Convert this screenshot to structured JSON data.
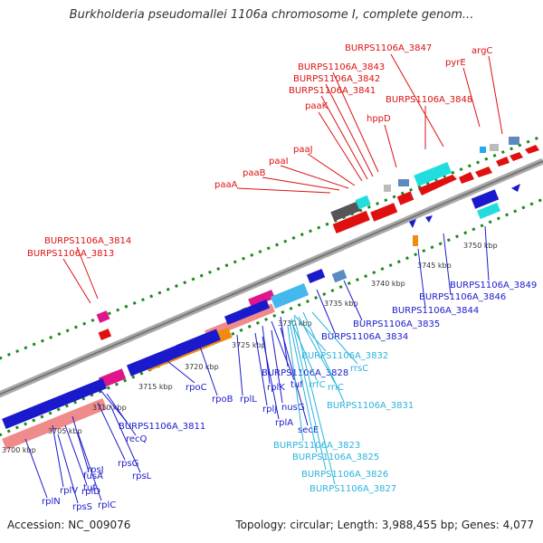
{
  "title": "Burkholderia pseudomallei 1106a chromosome I, complete genom...",
  "accession_text": "Accession: NC_009076",
  "summary_text": "Topology: circular; Length: 3,988,455 bp; Genes: 4,077",
  "colors": {
    "forward_gene": "#e01010",
    "reverse_gene": "#1a1acc",
    "backbone": "#888888",
    "ruler": "#1a8a1a",
    "label_top": "#dd1111",
    "label_bottom": "#1a1acc",
    "label_rna": "#2bb3dd"
  },
  "ticks": [
    "3700 kbp",
    "3705 kbp",
    "3710 kbp",
    "3715 kbp",
    "3720 kbp",
    "3725 kbp",
    "3730 kbp",
    "3735 kbp",
    "3740 kbp",
    "3745 kbp",
    "3750 kbp"
  ],
  "top_labels": [
    "BURPS1106A_3847",
    "argC",
    "pyrE",
    "BURPS1106A_3843",
    "BURPS1106A_3842",
    "BURPS1106A_3841",
    "BURPS1106A_3848",
    "paaK",
    "hppD",
    "paaJ",
    "paaI",
    "paaB",
    "paaA",
    "BURPS1106A_3814",
    "BURPS1106A_3813"
  ],
  "bottom_labels": [
    "BURPS1106A_3849",
    "BURPS1106A_3846",
    "BURPS1106A_3844",
    "BURPS1106A_3835",
    "BURPS1106A_3834",
    "BURPS1106A_3828",
    "rpoC",
    "rpoB",
    "rplL",
    "rplK",
    "tuf",
    "nusG",
    "rplJ",
    "rplA",
    "secE",
    "BURPS1106A_3811",
    "recQ",
    "rpsG",
    "rpsL",
    "fusA",
    "tuf",
    "rpsJ",
    "rplD",
    "rplV",
    "rplC",
    "rpsS",
    "rplN"
  ],
  "rna_labels": [
    "BURPS1106A_3832",
    "rrsC",
    "rrfC",
    "rrlC",
    "BURPS1106A_3831",
    "BURPS1106A_3823",
    "BURPS1106A_3825",
    "BURPS1106A_3826",
    "BURPS1106A_3827"
  ]
}
